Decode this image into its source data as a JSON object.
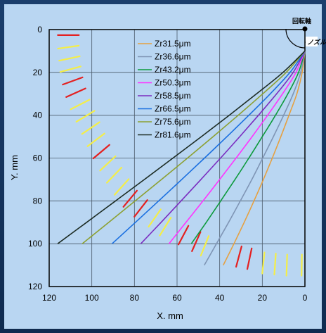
{
  "chart_data": {
    "type": "line",
    "xlabel": "X. mm",
    "ylabel": "Y. mm",
    "xlim": [
      120,
      0
    ],
    "ylim": [
      0,
      120
    ],
    "x_reversed": true,
    "y_inverted": true,
    "xticks": [
      120,
      100,
      80,
      60,
      40,
      20,
      0
    ],
    "yticks": [
      0,
      20,
      40,
      60,
      80,
      100,
      120
    ],
    "grid": true,
    "legend_position": "top-center",
    "annotations": {
      "rotation_axis": "回転軸",
      "nozzle": "ノズル"
    },
    "series": [
      {
        "name": "Zr31.5μm",
        "color": "#e6a040",
        "x": [
          0,
          1.3,
          3.8,
          7.5,
          11.3,
          15.3,
          19.5,
          23.9,
          28.5,
          33.3,
          38.3
        ],
        "y": [
          10,
          20,
          30,
          40,
          50,
          60,
          70,
          80,
          90,
          100,
          110
        ]
      },
      {
        "name": "Zr36.6μm",
        "color": "#7f95b5",
        "x": [
          0,
          2.0,
          5.5,
          10.0,
          14.8,
          19.8,
          24.9,
          30.3,
          35.8,
          41.5,
          47.2
        ],
        "y": [
          10,
          20,
          30,
          40,
          50,
          60,
          70,
          80,
          90,
          100,
          110
        ]
      },
      {
        "name": "Zr43.2μm",
        "color": "#0c9a3c",
        "x": [
          0,
          3.0,
          8.0,
          13.8,
          20.0,
          26.3,
          32.8,
          39.5,
          46.3,
          53.3
        ],
        "y": [
          10,
          20,
          30,
          40,
          50,
          60,
          70,
          80,
          90,
          100
        ]
      },
      {
        "name": "Zr50.3μm",
        "color": "#ff33ff",
        "x": [
          0,
          4.2,
          10.5,
          17.5,
          24.8,
          32.3,
          40.0,
          47.8,
          55.8,
          63.8
        ],
        "y": [
          10,
          20,
          30,
          40,
          50,
          60,
          70,
          80,
          90,
          100
        ]
      },
      {
        "name": "Zr58.5μm",
        "color": "#7a2cc0",
        "x": [
          0,
          5.5,
          13.3,
          21.8,
          30.6,
          39.6,
          48.8,
          58.1,
          67.5,
          77.0
        ],
        "y": [
          10,
          20,
          30,
          40,
          50,
          60,
          70,
          80,
          90,
          100
        ]
      },
      {
        "name": "Zr66.5μm",
        "color": "#1a6fe0",
        "x": [
          0,
          7.0,
          16.3,
          26.3,
          36.6,
          47.1,
          57.8,
          68.6,
          79.5,
          90.5
        ],
        "y": [
          10,
          20,
          30,
          40,
          50,
          60,
          70,
          80,
          90,
          100
        ]
      },
      {
        "name": "Zr75.6μm",
        "color": "#8ca032",
        "x": [
          0,
          8.8,
          19.8,
          31.3,
          43.1,
          55.1,
          67.3,
          79.6,
          92.0,
          104.5
        ],
        "y": [
          10,
          20,
          30,
          40,
          50,
          60,
          70,
          80,
          90,
          100
        ]
      },
      {
        "name": "Zr81.6μm",
        "color": "#1c2c24",
        "x": [
          0,
          10.3,
          22.7,
          35.5,
          48.6,
          61.9,
          75.3,
          88.8,
          102.4,
          116.0
        ],
        "y": [
          10,
          20,
          30,
          40,
          50,
          60,
          70,
          80,
          90,
          100
        ]
      }
    ],
    "particle_marks": [
      {
        "x": 111,
        "y": 2.6,
        "angle": 0,
        "color": "#e42020"
      },
      {
        "x": 111,
        "y": 8.2,
        "angle": -8,
        "color": "#f4ee48"
      },
      {
        "x": 110.5,
        "y": 13.5,
        "angle": -12,
        "color": "#f4ee48"
      },
      {
        "x": 110,
        "y": 18.5,
        "angle": -15,
        "color": "#f4ee48"
      },
      {
        "x": 109,
        "y": 24,
        "angle": -20,
        "color": "#e42020"
      },
      {
        "x": 107.5,
        "y": 29.5,
        "angle": -24,
        "color": "#e42020"
      },
      {
        "x": 105.5,
        "y": 35,
        "angle": -27,
        "color": "#f4ee48"
      },
      {
        "x": 103,
        "y": 40.5,
        "angle": -31,
        "color": "#f4ee48"
      },
      {
        "x": 100.5,
        "y": 46,
        "angle": -34,
        "color": "#f4ee48"
      },
      {
        "x": 98,
        "y": 51.5,
        "angle": -37,
        "color": "#f4ee48"
      },
      {
        "x": 95.5,
        "y": 57,
        "angle": -40,
        "color": "#e42020"
      },
      {
        "x": 92.5,
        "y": 62.5,
        "angle": -43,
        "color": "#f4ee48"
      },
      {
        "x": 89.5,
        "y": 68,
        "angle": -46,
        "color": "#f4ee48"
      },
      {
        "x": 86,
        "y": 73.5,
        "angle": -48,
        "color": "#f4ee48"
      },
      {
        "x": 82,
        "y": 79,
        "angle": -50,
        "color": "#e42020"
      },
      {
        "x": 77,
        "y": 83.5,
        "angle": -52,
        "color": "#e42020"
      },
      {
        "x": 70.5,
        "y": 88,
        "angle": -55,
        "color": "#f4ee48"
      },
      {
        "x": 65.5,
        "y": 92,
        "angle": -58,
        "color": "#f4ee48"
      },
      {
        "x": 57,
        "y": 96,
        "angle": -62,
        "color": "#e42020"
      },
      {
        "x": 51,
        "y": 99,
        "angle": -66,
        "color": "#e42020"
      },
      {
        "x": 47,
        "y": 101,
        "angle": -68,
        "color": "#f4ee48"
      },
      {
        "x": 31,
        "y": 106,
        "angle": -75,
        "color": "#e42020"
      },
      {
        "x": 26,
        "y": 107,
        "angle": -78,
        "color": "#e42020"
      },
      {
        "x": 19.5,
        "y": 109,
        "angle": -84,
        "color": "#f4ee48"
      },
      {
        "x": 14,
        "y": 109.5,
        "angle": -86,
        "color": "#f4ee48"
      },
      {
        "x": 8.5,
        "y": 110,
        "angle": -88,
        "color": "#f4ee48"
      },
      {
        "x": 1.5,
        "y": 110,
        "angle": -89,
        "color": "#f4ee48"
      }
    ]
  }
}
